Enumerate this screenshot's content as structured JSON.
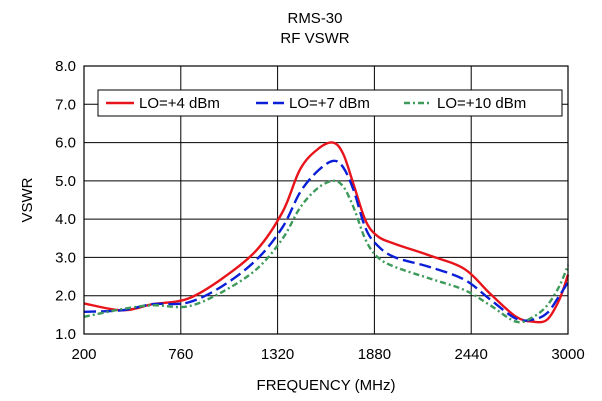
{
  "chart_data": {
    "type": "line",
    "title": "RMS-30",
    "subtitle": "RF VSWR",
    "xlabel": "FREQUENCY (MHz)",
    "ylabel": "VSWR",
    "xlim": [
      200,
      3000
    ],
    "ylim": [
      1.0,
      8.0
    ],
    "x_ticks": [
      "200",
      "760",
      "1320",
      "1880",
      "2440",
      "3000"
    ],
    "y_ticks": [
      "1.0",
      "2.0",
      "3.0",
      "4.0",
      "5.0",
      "6.0",
      "7.0",
      "8.0"
    ],
    "grid": true,
    "legend_position": "top",
    "series": [
      {
        "name": "LO=+4 dBm",
        "color": "#e8141b",
        "style": "solid",
        "points": [
          [
            200,
            1.8
          ],
          [
            420,
            1.62
          ],
          [
            600,
            1.78
          ],
          [
            800,
            1.92
          ],
          [
            1000,
            2.45
          ],
          [
            1200,
            3.2
          ],
          [
            1350,
            4.2
          ],
          [
            1450,
            5.3
          ],
          [
            1550,
            5.82
          ],
          [
            1640,
            6.0
          ],
          [
            1700,
            5.7
          ],
          [
            1760,
            4.9
          ],
          [
            1830,
            3.95
          ],
          [
            1900,
            3.55
          ],
          [
            2000,
            3.35
          ],
          [
            2200,
            3.05
          ],
          [
            2400,
            2.7
          ],
          [
            2550,
            2.05
          ],
          [
            2700,
            1.45
          ],
          [
            2800,
            1.32
          ],
          [
            2880,
            1.38
          ],
          [
            2950,
            1.9
          ],
          [
            3000,
            2.55
          ]
        ]
      },
      {
        "name": "LO=+7 dBm",
        "color": "#0a1fd6",
        "style": "dashed",
        "points": [
          [
            200,
            1.58
          ],
          [
            420,
            1.62
          ],
          [
            600,
            1.78
          ],
          [
            800,
            1.82
          ],
          [
            1000,
            2.25
          ],
          [
            1200,
            2.95
          ],
          [
            1350,
            3.8
          ],
          [
            1450,
            4.7
          ],
          [
            1550,
            5.25
          ],
          [
            1640,
            5.52
          ],
          [
            1700,
            5.35
          ],
          [
            1760,
            4.75
          ],
          [
            1830,
            3.75
          ],
          [
            1900,
            3.3
          ],
          [
            2000,
            3.0
          ],
          [
            2200,
            2.75
          ],
          [
            2400,
            2.42
          ],
          [
            2550,
            1.9
          ],
          [
            2700,
            1.4
          ],
          [
            2800,
            1.38
          ],
          [
            2880,
            1.55
          ],
          [
            2950,
            2.0
          ],
          [
            3000,
            2.35
          ]
        ]
      },
      {
        "name": "LO=+10 dBm",
        "color": "#3d9a5a",
        "style": "dash-dot",
        "points": [
          [
            200,
            1.45
          ],
          [
            420,
            1.65
          ],
          [
            600,
            1.75
          ],
          [
            800,
            1.72
          ],
          [
            1000,
            2.1
          ],
          [
            1200,
            2.7
          ],
          [
            1350,
            3.5
          ],
          [
            1450,
            4.3
          ],
          [
            1550,
            4.8
          ],
          [
            1640,
            5.0
          ],
          [
            1700,
            4.85
          ],
          [
            1760,
            4.3
          ],
          [
            1830,
            3.45
          ],
          [
            1900,
            3.0
          ],
          [
            2000,
            2.75
          ],
          [
            2200,
            2.45
          ],
          [
            2400,
            2.15
          ],
          [
            2550,
            1.75
          ],
          [
            2700,
            1.32
          ],
          [
            2800,
            1.45
          ],
          [
            2880,
            1.75
          ],
          [
            2950,
            2.25
          ],
          [
            3000,
            2.8
          ]
        ]
      }
    ]
  }
}
